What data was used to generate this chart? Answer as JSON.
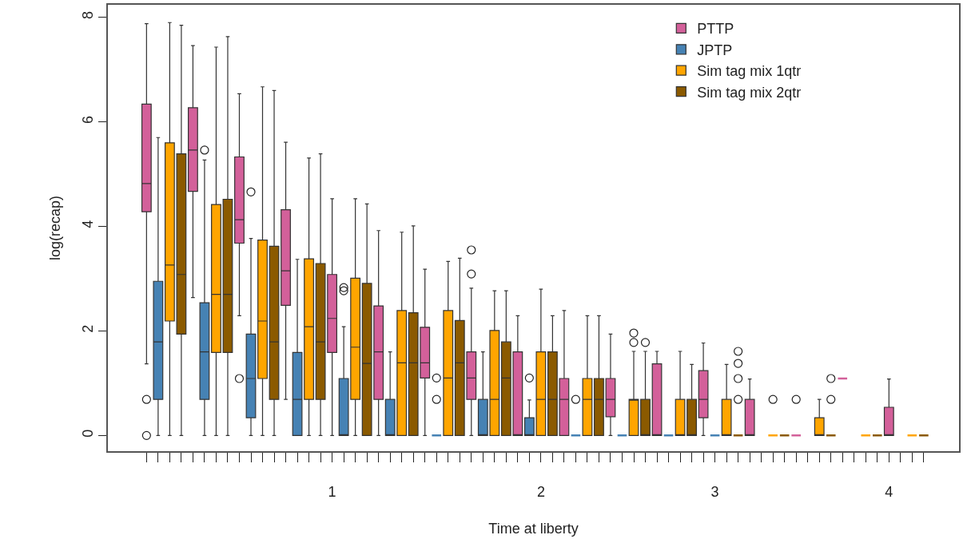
{
  "chart_data": {
    "type": "box",
    "xlabel": "Time at liberty",
    "ylabel": "log(recap)",
    "legend": "top right",
    "ylim": [
      -0.3,
      8.24
    ],
    "yticks": [
      0,
      2,
      4,
      6,
      8
    ],
    "categories": [
      null,
      null,
      null,
      null,
      null,
      null,
      null,
      null,
      null,
      null,
      null,
      null,
      null,
      null,
      null,
      null,
      "1",
      null,
      null,
      null,
      null,
      null,
      null,
      null,
      null,
      null,
      null,
      null,
      null,
      null,
      null,
      null,
      null,
      null,
      "2",
      null,
      null,
      null,
      null,
      null,
      null,
      null,
      null,
      null,
      null,
      null,
      null,
      null,
      null,
      "3",
      null,
      null,
      null,
      null,
      null,
      null,
      null,
      null,
      null,
      null,
      null,
      null,
      null,
      null,
      "4",
      null,
      null,
      null
    ],
    "series": [
      {
        "name": "PTTP",
        "color": "#d3609a",
        "boxes": [
          {
            "low": 1.37,
            "q1": 4.28,
            "median": 4.82,
            "q3": 6.34,
            "high": 7.88,
            "outliers": [
              0.69,
              0
            ]
          },
          null,
          null,
          null,
          {
            "low": 2.64,
            "q1": 4.67,
            "median": 5.46,
            "q3": 6.27,
            "high": 7.46
          },
          null,
          null,
          null,
          {
            "low": 2.29,
            "q1": 3.68,
            "median": 4.13,
            "q3": 5.33,
            "high": 6.54,
            "outliers": [
              1.09
            ]
          },
          null,
          null,
          null,
          {
            "low": 0.69,
            "q1": 2.49,
            "median": 3.15,
            "q3": 4.32,
            "high": 5.61
          },
          null,
          null,
          null,
          {
            "low": 0,
            "q1": 1.59,
            "median": 2.24,
            "q3": 3.08,
            "high": 4.53
          },
          null,
          null,
          null,
          {
            "low": 0,
            "q1": 0.69,
            "median": 1.6,
            "q3": 2.48,
            "high": 3.92
          },
          null,
          null,
          null,
          {
            "low": 0,
            "q1": 1.1,
            "median": 1.39,
            "q3": 2.07,
            "high": 3.18
          },
          null,
          null,
          null,
          {
            "low": 0,
            "q1": 0.69,
            "median": 1.1,
            "q3": 1.6,
            "high": 2.82,
            "outliers": [
              3.55,
              3.09
            ]
          },
          null,
          null,
          null,
          {
            "low": 0,
            "q1": 0,
            "median": 0,
            "q3": 1.6,
            "high": 2.29
          },
          null,
          null,
          null,
          {
            "low": 0,
            "q1": 0,
            "median": 0.69,
            "q3": 1.09,
            "high": 2.39
          },
          null,
          null,
          null,
          {
            "low": 0,
            "q1": 0.36,
            "median": 0.69,
            "q3": 1.09,
            "high": 1.94
          },
          null,
          null,
          null,
          {
            "low": 0,
            "q1": 0,
            "median": 0,
            "q3": 1.37,
            "high": 1.61
          },
          null,
          null,
          null,
          {
            "low": 0,
            "q1": 0.34,
            "median": 0.69,
            "q3": 1.24,
            "high": 1.77
          },
          null,
          null,
          null,
          {
            "low": 0,
            "q1": 0,
            "median": 0,
            "q3": 0.69,
            "high": 1.08
          },
          null,
          null,
          null,
          {
            "low": 0,
            "q1": 0,
            "median": 0,
            "q3": 0,
            "high": 0,
            "outliers": [
              0.69
            ]
          },
          null,
          null,
          null,
          {
            "low": 1.09,
            "q1": 1.09,
            "median": 1.09,
            "q3": 1.09,
            "high": 1.09
          },
          null,
          null,
          null,
          {
            "low": 0,
            "q1": 0,
            "median": 0,
            "q3": 0.54,
            "high": 1.08
          },
          null,
          null,
          null
        ]
      },
      {
        "name": "JPTP",
        "color": "#4682b4",
        "boxes": [
          null,
          {
            "low": 0,
            "q1": 0.69,
            "median": 1.79,
            "q3": 2.95,
            "high": 5.7
          },
          null,
          null,
          null,
          {
            "low": 0,
            "q1": 0.69,
            "median": 1.6,
            "q3": 2.54,
            "high": 5.27,
            "outliers": [
              5.46
            ]
          },
          null,
          null,
          null,
          {
            "low": 0,
            "q1": 0.34,
            "median": 1.09,
            "q3": 1.94,
            "high": 3.77,
            "outliers": [
              4.66
            ]
          },
          null,
          null,
          null,
          {
            "low": 0,
            "q1": 0,
            "median": 0.69,
            "q3": 1.59,
            "high": 3.37
          },
          null,
          null,
          null,
          {
            "low": 0,
            "q1": 0,
            "median": 0,
            "q3": 1.09,
            "high": 2.08,
            "outliers": [
              2.83,
              2.77
            ]
          },
          null,
          null,
          null,
          {
            "low": 0,
            "q1": 0,
            "median": 0,
            "q3": 0.69,
            "high": 1.6
          },
          null,
          null,
          null,
          {
            "low": 0,
            "q1": 0,
            "median": 0,
            "q3": 0,
            "high": 0,
            "outliers": [
              1.1,
              0.69
            ]
          },
          null,
          null,
          null,
          {
            "low": 0,
            "q1": 0,
            "median": 0,
            "q3": 0.69,
            "high": 1.6
          },
          null,
          null,
          null,
          {
            "low": 0,
            "q1": 0,
            "median": 0,
            "q3": 0.34,
            "high": 0.68,
            "outliers": [
              1.1
            ]
          },
          null,
          null,
          null,
          {
            "low": 0,
            "q1": 0,
            "median": 0,
            "q3": 0,
            "high": 0,
            "outliers": [
              0.69
            ]
          },
          null,
          null,
          null,
          {
            "low": 0,
            "q1": 0,
            "median": 0,
            "q3": 0,
            "high": 0
          },
          null,
          null,
          null,
          {
            "low": 0,
            "q1": 0,
            "median": 0,
            "q3": 0,
            "high": 0
          },
          null,
          null,
          null,
          {
            "low": 0,
            "q1": 0,
            "median": 0,
            "q3": 0,
            "high": 0
          },
          null,
          null,
          null,
          null,
          null,
          null,
          null,
          null,
          null,
          null,
          null,
          null,
          null,
          null,
          null,
          null,
          null,
          null
        ]
      },
      {
        "name": "Sim tag mix 1qtr",
        "color": "#ffa500",
        "boxes": [
          null,
          null,
          {
            "low": 0,
            "q1": 2.19,
            "median": 3.26,
            "q3": 5.6,
            "high": 7.9
          },
          null,
          null,
          null,
          {
            "low": 0,
            "q1": 1.59,
            "median": 2.7,
            "q3": 4.42,
            "high": 7.43
          },
          null,
          null,
          null,
          {
            "low": 0,
            "q1": 1.09,
            "median": 2.19,
            "q3": 3.74,
            "high": 6.67
          },
          null,
          null,
          null,
          {
            "low": 0,
            "q1": 0.69,
            "median": 2.08,
            "q3": 3.38,
            "high": 5.31
          },
          null,
          null,
          null,
          {
            "low": 0,
            "q1": 0.69,
            "median": 1.69,
            "q3": 3.01,
            "high": 4.53
          },
          null,
          null,
          null,
          {
            "low": 0,
            "q1": 0,
            "median": 1.39,
            "q3": 2.39,
            "high": 3.89
          },
          null,
          null,
          null,
          {
            "low": 0,
            "q1": 0,
            "median": 1.1,
            "q3": 2.39,
            "high": 3.33
          },
          null,
          null,
          null,
          {
            "low": 0,
            "q1": 0,
            "median": 0.69,
            "q3": 2.01,
            "high": 2.77
          },
          null,
          null,
          null,
          {
            "low": 0,
            "q1": 0,
            "median": 0.69,
            "q3": 1.6,
            "high": 2.8
          },
          null,
          null,
          null,
          {
            "low": 0,
            "q1": 0,
            "median": 0.69,
            "q3": 1.09,
            "high": 2.29
          },
          null,
          null,
          null,
          {
            "low": 0,
            "q1": 0,
            "median": 0.69,
            "q3": 0.69,
            "high": 1.61,
            "outliers": [
              1.96,
              1.78
            ]
          },
          null,
          null,
          null,
          {
            "low": 0,
            "q1": 0,
            "median": 0,
            "q3": 0.69,
            "high": 1.61
          },
          null,
          null,
          null,
          {
            "low": 0,
            "q1": 0,
            "median": 0,
            "q3": 0.69,
            "high": 1.36
          },
          null,
          null,
          null,
          {
            "low": 0,
            "q1": 0,
            "median": 0,
            "q3": 0,
            "high": 0,
            "outliers": [
              0.69
            ]
          },
          null,
          null,
          null,
          {
            "low": 0,
            "q1": 0,
            "median": 0,
            "q3": 0.34,
            "high": 0.69
          },
          null,
          null,
          null,
          {
            "low": 0,
            "q1": 0,
            "median": 0,
            "q3": 0,
            "high": 0
          },
          null,
          null,
          null,
          {
            "low": 0,
            "q1": 0,
            "median": 0,
            "q3": 0,
            "high": 0
          },
          null
        ]
      },
      {
        "name": "Sim tag mix 2qtr",
        "color": "#8b5a00",
        "boxes": [
          null,
          null,
          null,
          {
            "low": 0,
            "q1": 1.94,
            "median": 3.08,
            "q3": 5.39,
            "high": 7.85
          },
          null,
          null,
          null,
          {
            "low": 0,
            "q1": 1.59,
            "median": 2.7,
            "q3": 4.52,
            "high": 7.63
          },
          null,
          null,
          null,
          {
            "low": 0,
            "q1": 0.69,
            "median": 1.79,
            "q3": 3.62,
            "high": 6.6
          },
          null,
          null,
          null,
          {
            "low": 0,
            "q1": 0.69,
            "median": 1.79,
            "q3": 3.29,
            "high": 5.39
          },
          null,
          null,
          null,
          {
            "low": 0,
            "q1": 0,
            "median": 1.38,
            "q3": 2.91,
            "high": 4.43
          },
          null,
          null,
          null,
          {
            "low": 0,
            "q1": 0,
            "median": 1.39,
            "q3": 2.35,
            "high": 4.01
          },
          null,
          null,
          null,
          {
            "low": 0,
            "q1": 0,
            "median": 1.39,
            "q3": 2.2,
            "high": 3.39
          },
          null,
          null,
          null,
          {
            "low": 0,
            "q1": 0,
            "median": 1.1,
            "q3": 1.79,
            "high": 2.77
          },
          null,
          null,
          null,
          {
            "low": 0,
            "q1": 0,
            "median": 0.69,
            "q3": 1.6,
            "high": 2.29
          },
          null,
          null,
          null,
          {
            "low": 0,
            "q1": 0,
            "median": 0.69,
            "q3": 1.09,
            "high": 2.29
          },
          null,
          null,
          null,
          {
            "low": 0,
            "q1": 0,
            "median": 0,
            "q3": 0.69,
            "high": 1.61,
            "outliers": [
              1.78
            ]
          },
          null,
          null,
          null,
          {
            "low": 0,
            "q1": 0,
            "median": 0,
            "q3": 0.69,
            "high": 1.36
          },
          null,
          null,
          null,
          {
            "low": 0,
            "q1": 0,
            "median": 0,
            "q3": 0,
            "high": 0,
            "outliers": [
              1.61,
              1.38,
              1.09,
              0.69
            ]
          },
          null,
          null,
          null,
          {
            "low": 0,
            "q1": 0,
            "median": 0,
            "q3": 0,
            "high": 0
          },
          null,
          null,
          null,
          {
            "low": 0,
            "q1": 0,
            "median": 0,
            "q3": 0,
            "high": 0,
            "outliers": [
              1.09,
              0.69
            ]
          },
          null,
          null,
          null,
          {
            "low": 0,
            "q1": 0,
            "median": 0,
            "q3": 0,
            "high": 0
          },
          null,
          null,
          null,
          {
            "low": 0,
            "q1": 0,
            "median": 0,
            "q3": 0,
            "high": 0
          }
        ]
      }
    ]
  }
}
